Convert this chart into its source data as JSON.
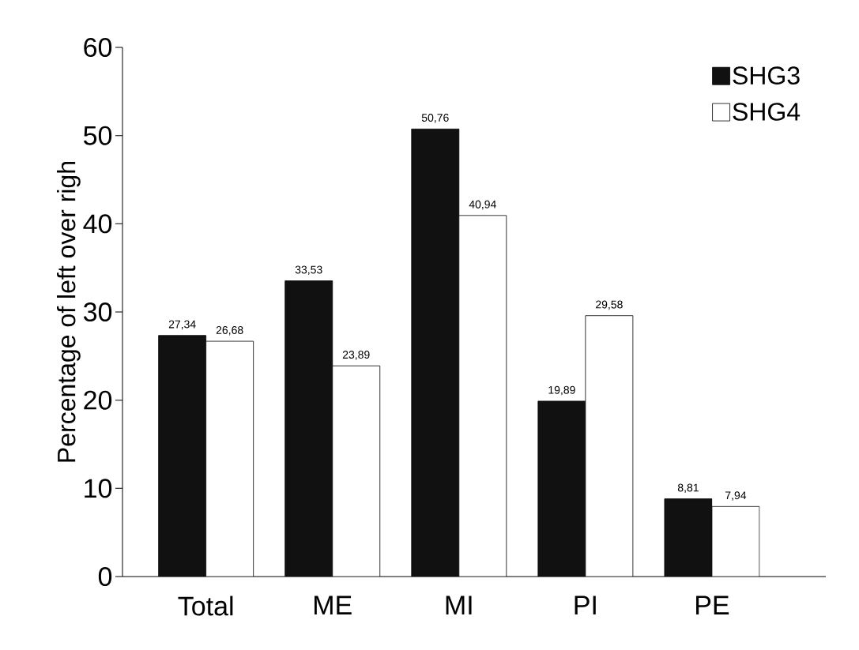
{
  "chart_data": {
    "type": "bar",
    "ylabel": "Percentage of left over righ",
    "categories": [
      "Total",
      "ME",
      "MI",
      "PI",
      "PE"
    ],
    "series": [
      {
        "name": "SHG3",
        "color": "#111111",
        "values": [
          27.34,
          33.53,
          50.76,
          19.89,
          8.81
        ],
        "value_labels": [
          "27,34",
          "33,53",
          "50,76",
          "19,89",
          "8,81"
        ]
      },
      {
        "name": "SHG4",
        "color": "#ffffff",
        "values": [
          26.68,
          23.89,
          40.94,
          29.58,
          7.94
        ],
        "value_labels": [
          "26,68",
          "23,89",
          "40,94",
          "29,58",
          "7,94"
        ]
      }
    ],
    "ylim": [
      0,
      60
    ],
    "yticks": [
      0,
      10,
      20,
      30,
      40,
      50,
      60
    ],
    "grid": false,
    "legend": "top right"
  }
}
